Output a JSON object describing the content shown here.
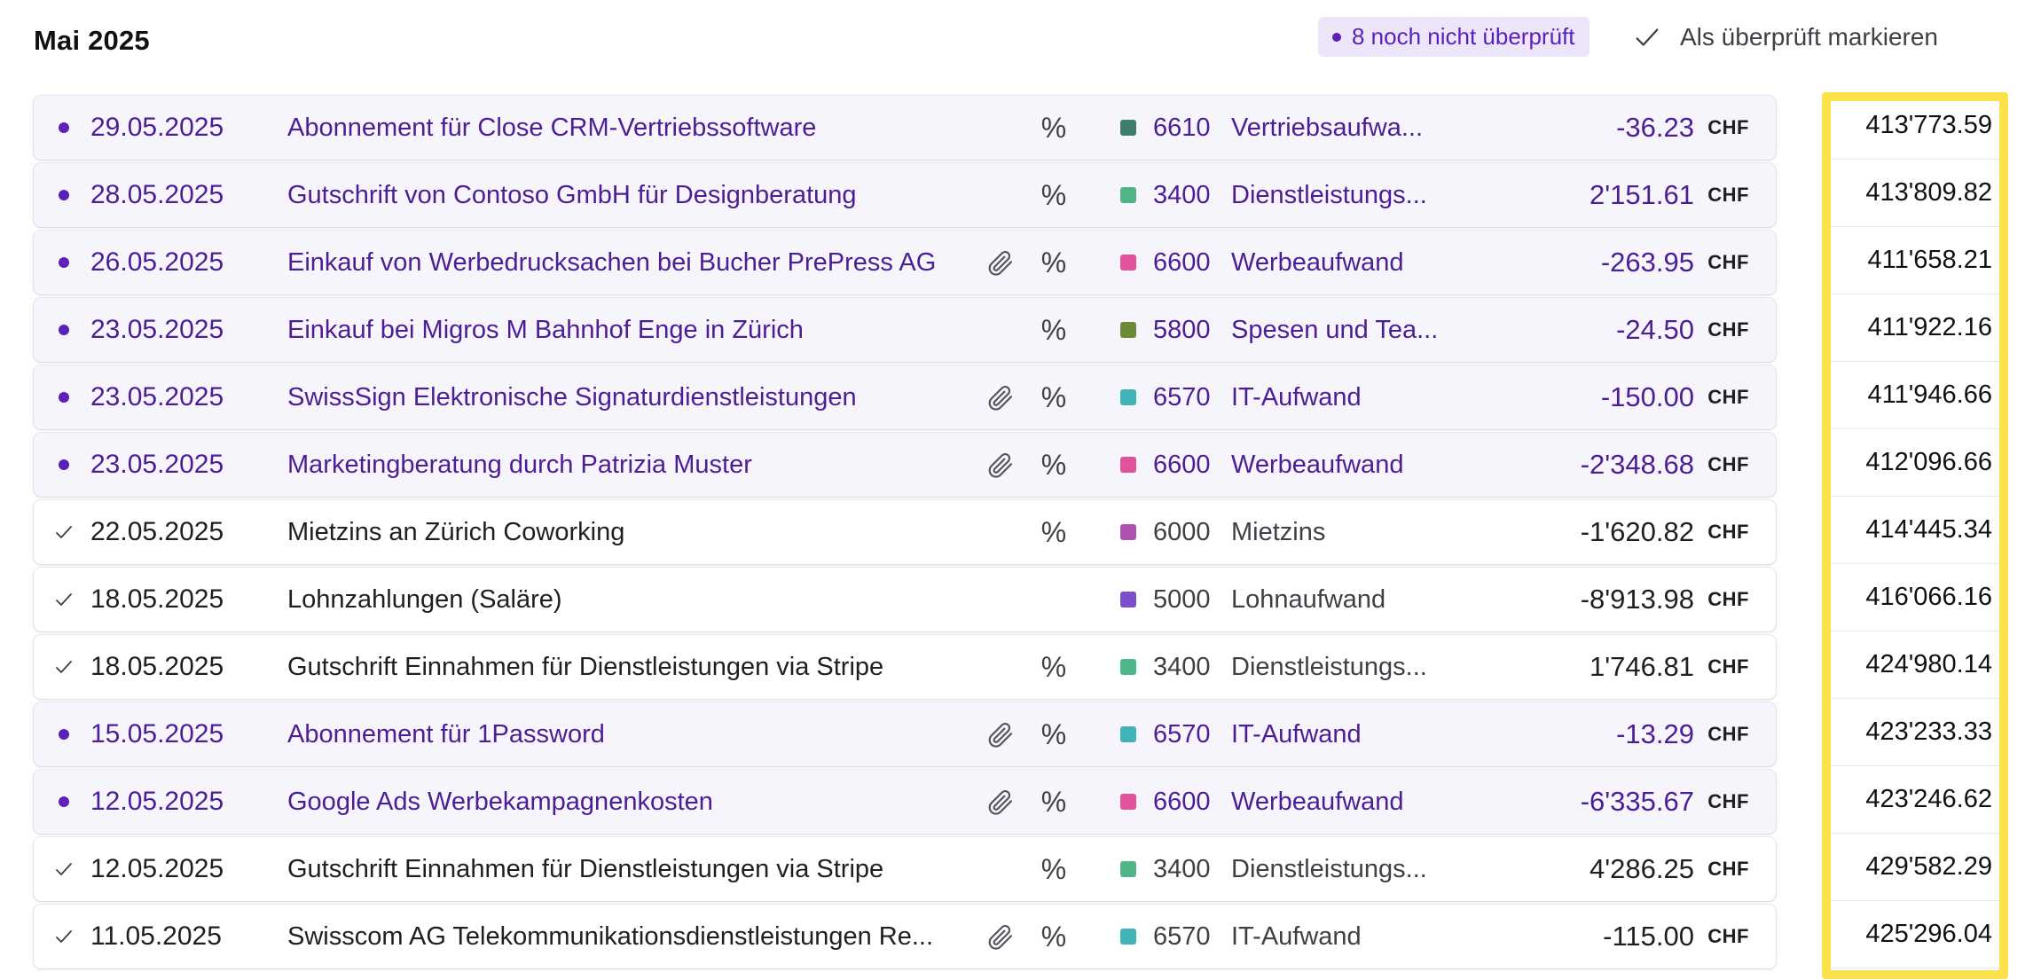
{
  "header": {
    "month_title": "Mai 2025",
    "pending_badge": "8 noch nicht überprüft",
    "mark_reviewed_label": "Als überprüft markieren"
  },
  "currency": "CHF",
  "colors": {
    "accent": "#5b21b6",
    "highlight": "#fbe24a"
  },
  "transactions": [
    {
      "status": "unreviewed",
      "date": "29.05.2025",
      "description": "Abonnement für Close CRM-Vertriebssoftware",
      "attachment": false,
      "vat": "%",
      "account_color": "#3c7f6c",
      "account_number": "6610",
      "account_name": "Vertriebsaufwa...",
      "amount": "-36.23",
      "balance": "413'773.59"
    },
    {
      "status": "unreviewed",
      "date": "28.05.2025",
      "description": "Gutschrift von Contoso GmbH für Designberatung",
      "attachment": false,
      "vat": "%",
      "account_color": "#4fb68a",
      "account_number": "3400",
      "account_name": "Dienstleistungs...",
      "amount": "2'151.61",
      "balance": "413'809.82"
    },
    {
      "status": "unreviewed",
      "date": "26.05.2025",
      "description": "Einkauf von Werbedrucksachen bei Bucher PrePress AG",
      "attachment": true,
      "vat": "%",
      "account_color": "#e0529a",
      "account_number": "6600",
      "account_name": "Werbeaufwand",
      "amount": "-263.95",
      "balance": "411'658.21"
    },
    {
      "status": "unreviewed",
      "date": "23.05.2025",
      "description": "Einkauf bei Migros M Bahnhof Enge in Zürich",
      "attachment": false,
      "vat": "%",
      "account_color": "#6d8a36",
      "account_number": "5800",
      "account_name": "Spesen und Tea...",
      "amount": "-24.50",
      "balance": "411'922.16"
    },
    {
      "status": "unreviewed",
      "date": "23.05.2025",
      "description": "SwissSign Elektronische Signaturdienstleistungen",
      "attachment": true,
      "vat": "%",
      "account_color": "#3fb3b8",
      "account_number": "6570",
      "account_name": "IT-Aufwand",
      "amount": "-150.00",
      "balance": "411'946.66"
    },
    {
      "status": "unreviewed",
      "date": "23.05.2025",
      "description": "Marketingberatung durch Patrizia Muster",
      "attachment": true,
      "vat": "%",
      "account_color": "#e0529a",
      "account_number": "6600",
      "account_name": "Werbeaufwand",
      "amount": "-2'348.68",
      "balance": "412'096.66"
    },
    {
      "status": "reviewed",
      "date": "22.05.2025",
      "description": "Mietzins an Zürich Coworking",
      "attachment": false,
      "vat": "%",
      "account_color": "#b152b3",
      "account_number": "6000",
      "account_name": "Mietzins",
      "amount": "-1'620.82",
      "balance": "414'445.34"
    },
    {
      "status": "reviewed",
      "date": "18.05.2025",
      "description": "Lohnzahlungen (Saläre)",
      "attachment": false,
      "vat": "",
      "account_color": "#7b4fc9",
      "account_number": "5000",
      "account_name": "Lohnaufwand",
      "amount": "-8'913.98",
      "balance": "416'066.16"
    },
    {
      "status": "reviewed",
      "date": "18.05.2025",
      "description": "Gutschrift Einnahmen für Dienstleistungen via Stripe",
      "attachment": false,
      "vat": "%",
      "account_color": "#4fb68a",
      "account_number": "3400",
      "account_name": "Dienstleistungs...",
      "amount": "1'746.81",
      "balance": "424'980.14"
    },
    {
      "status": "unreviewed",
      "date": "15.05.2025",
      "description": "Abonnement für 1Password",
      "attachment": true,
      "vat": "%",
      "account_color": "#3fb3b8",
      "account_number": "6570",
      "account_name": "IT-Aufwand",
      "amount": "-13.29",
      "balance": "423'233.33"
    },
    {
      "status": "unreviewed",
      "date": "12.05.2025",
      "description": "Google Ads Werbekampagnenkosten",
      "attachment": true,
      "vat": "%",
      "account_color": "#e0529a",
      "account_number": "6600",
      "account_name": "Werbeaufwand",
      "amount": "-6'335.67",
      "balance": "423'246.62"
    },
    {
      "status": "reviewed",
      "date": "12.05.2025",
      "description": "Gutschrift Einnahmen für Dienstleistungen via Stripe",
      "attachment": false,
      "vat": "%",
      "account_color": "#4fb68a",
      "account_number": "3400",
      "account_name": "Dienstleistungs...",
      "amount": "4'286.25",
      "balance": "429'582.29"
    },
    {
      "status": "reviewed",
      "date": "11.05.2025",
      "description": "Swisscom AG Telekommunikationsdienstleistungen Re...",
      "attachment": true,
      "vat": "%",
      "account_color": "#3fb3b8",
      "account_number": "6570",
      "account_name": "IT-Aufwand",
      "amount": "-115.00",
      "balance": "425'296.04"
    }
  ]
}
